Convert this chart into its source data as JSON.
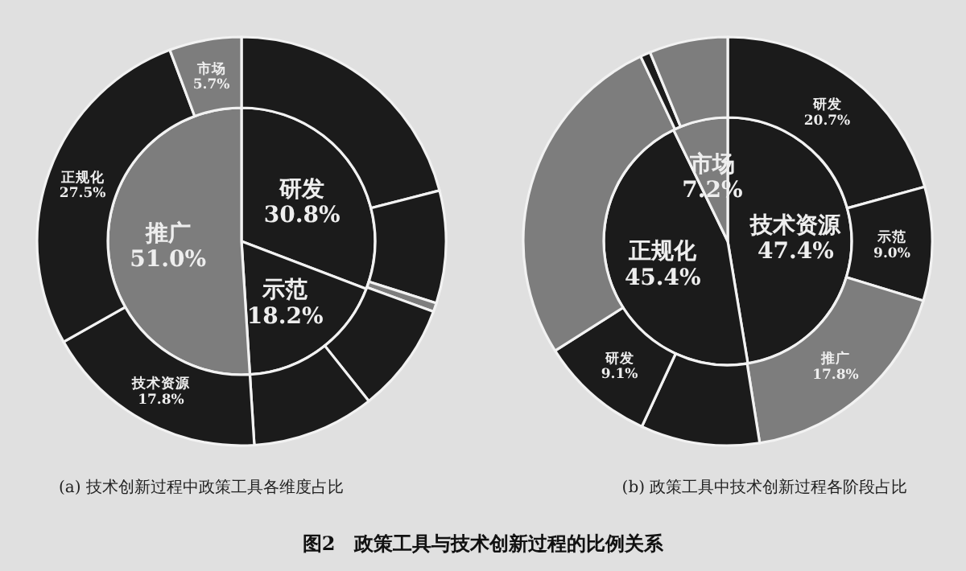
{
  "chart_data": [
    {
      "type": "pie",
      "categories": [
        "研发",
        "示范",
        "推广"
      ],
      "values": [
        30.8,
        18.2,
        51.0
      ],
      "colors": [
        "#1b1b1b",
        "#1b1b1b",
        "#7d7d7d"
      ],
      "value_labels": [
        "30.8%",
        "18.2%",
        "51.0%"
      ],
      "annotations": [
        "图2　政策工具与技术创新过程的比例关系"
      ]
    },
    {
      "type": "donut",
      "title": "(a) 技术创新过程中政策工具各维度占比",
      "categories": [
        null,
        null,
        null,
        null,
        null,
        "技术资源",
        "正规化",
        "市场"
      ],
      "values": [
        21.0,
        8.9,
        0.7,
        8.7,
        9.7,
        17.8,
        27.5,
        5.7
      ],
      "colors": [
        "#1b1b1b",
        "#1b1b1b",
        "#7d7d7d",
        "#1b1b1b",
        "#1b1b1b",
        "#1b1b1b",
        "#1b1b1b",
        "#7d7d7d"
      ],
      "value_labels": [
        null,
        null,
        null,
        null,
        null,
        "17.8%",
        "27.5%",
        "5.7%"
      ]
    },
    {
      "type": "pie",
      "categories": [
        "技术资源",
        "正规化",
        "市场"
      ],
      "values": [
        47.4,
        45.4,
        7.2
      ],
      "colors": [
        "#1b1b1b",
        "#1b1b1b",
        "#7d7d7d"
      ],
      "value_labels": [
        "47.4%",
        "45.4%",
        "7.2%"
      ]
    },
    {
      "type": "donut",
      "title": "(b) 政策工具中技术创新过程各阶段占比",
      "categories": [
        "研发",
        "示范",
        "推广",
        null,
        "研发",
        null,
        null,
        null
      ],
      "values": [
        20.7,
        9.0,
        17.8,
        9.4,
        9.1,
        27.0,
        0.8,
        6.2
      ],
      "colors": [
        "#1b1b1b",
        "#1b1b1b",
        "#7d7d7d",
        "#1b1b1b",
        "#1b1b1b",
        "#7d7d7d",
        "#1b1b1b",
        "#7d7d7d"
      ],
      "value_labels": [
        "20.7%",
        "9.0%",
        "17.8%",
        null,
        "9.1%",
        null,
        null,
        null
      ]
    }
  ]
}
